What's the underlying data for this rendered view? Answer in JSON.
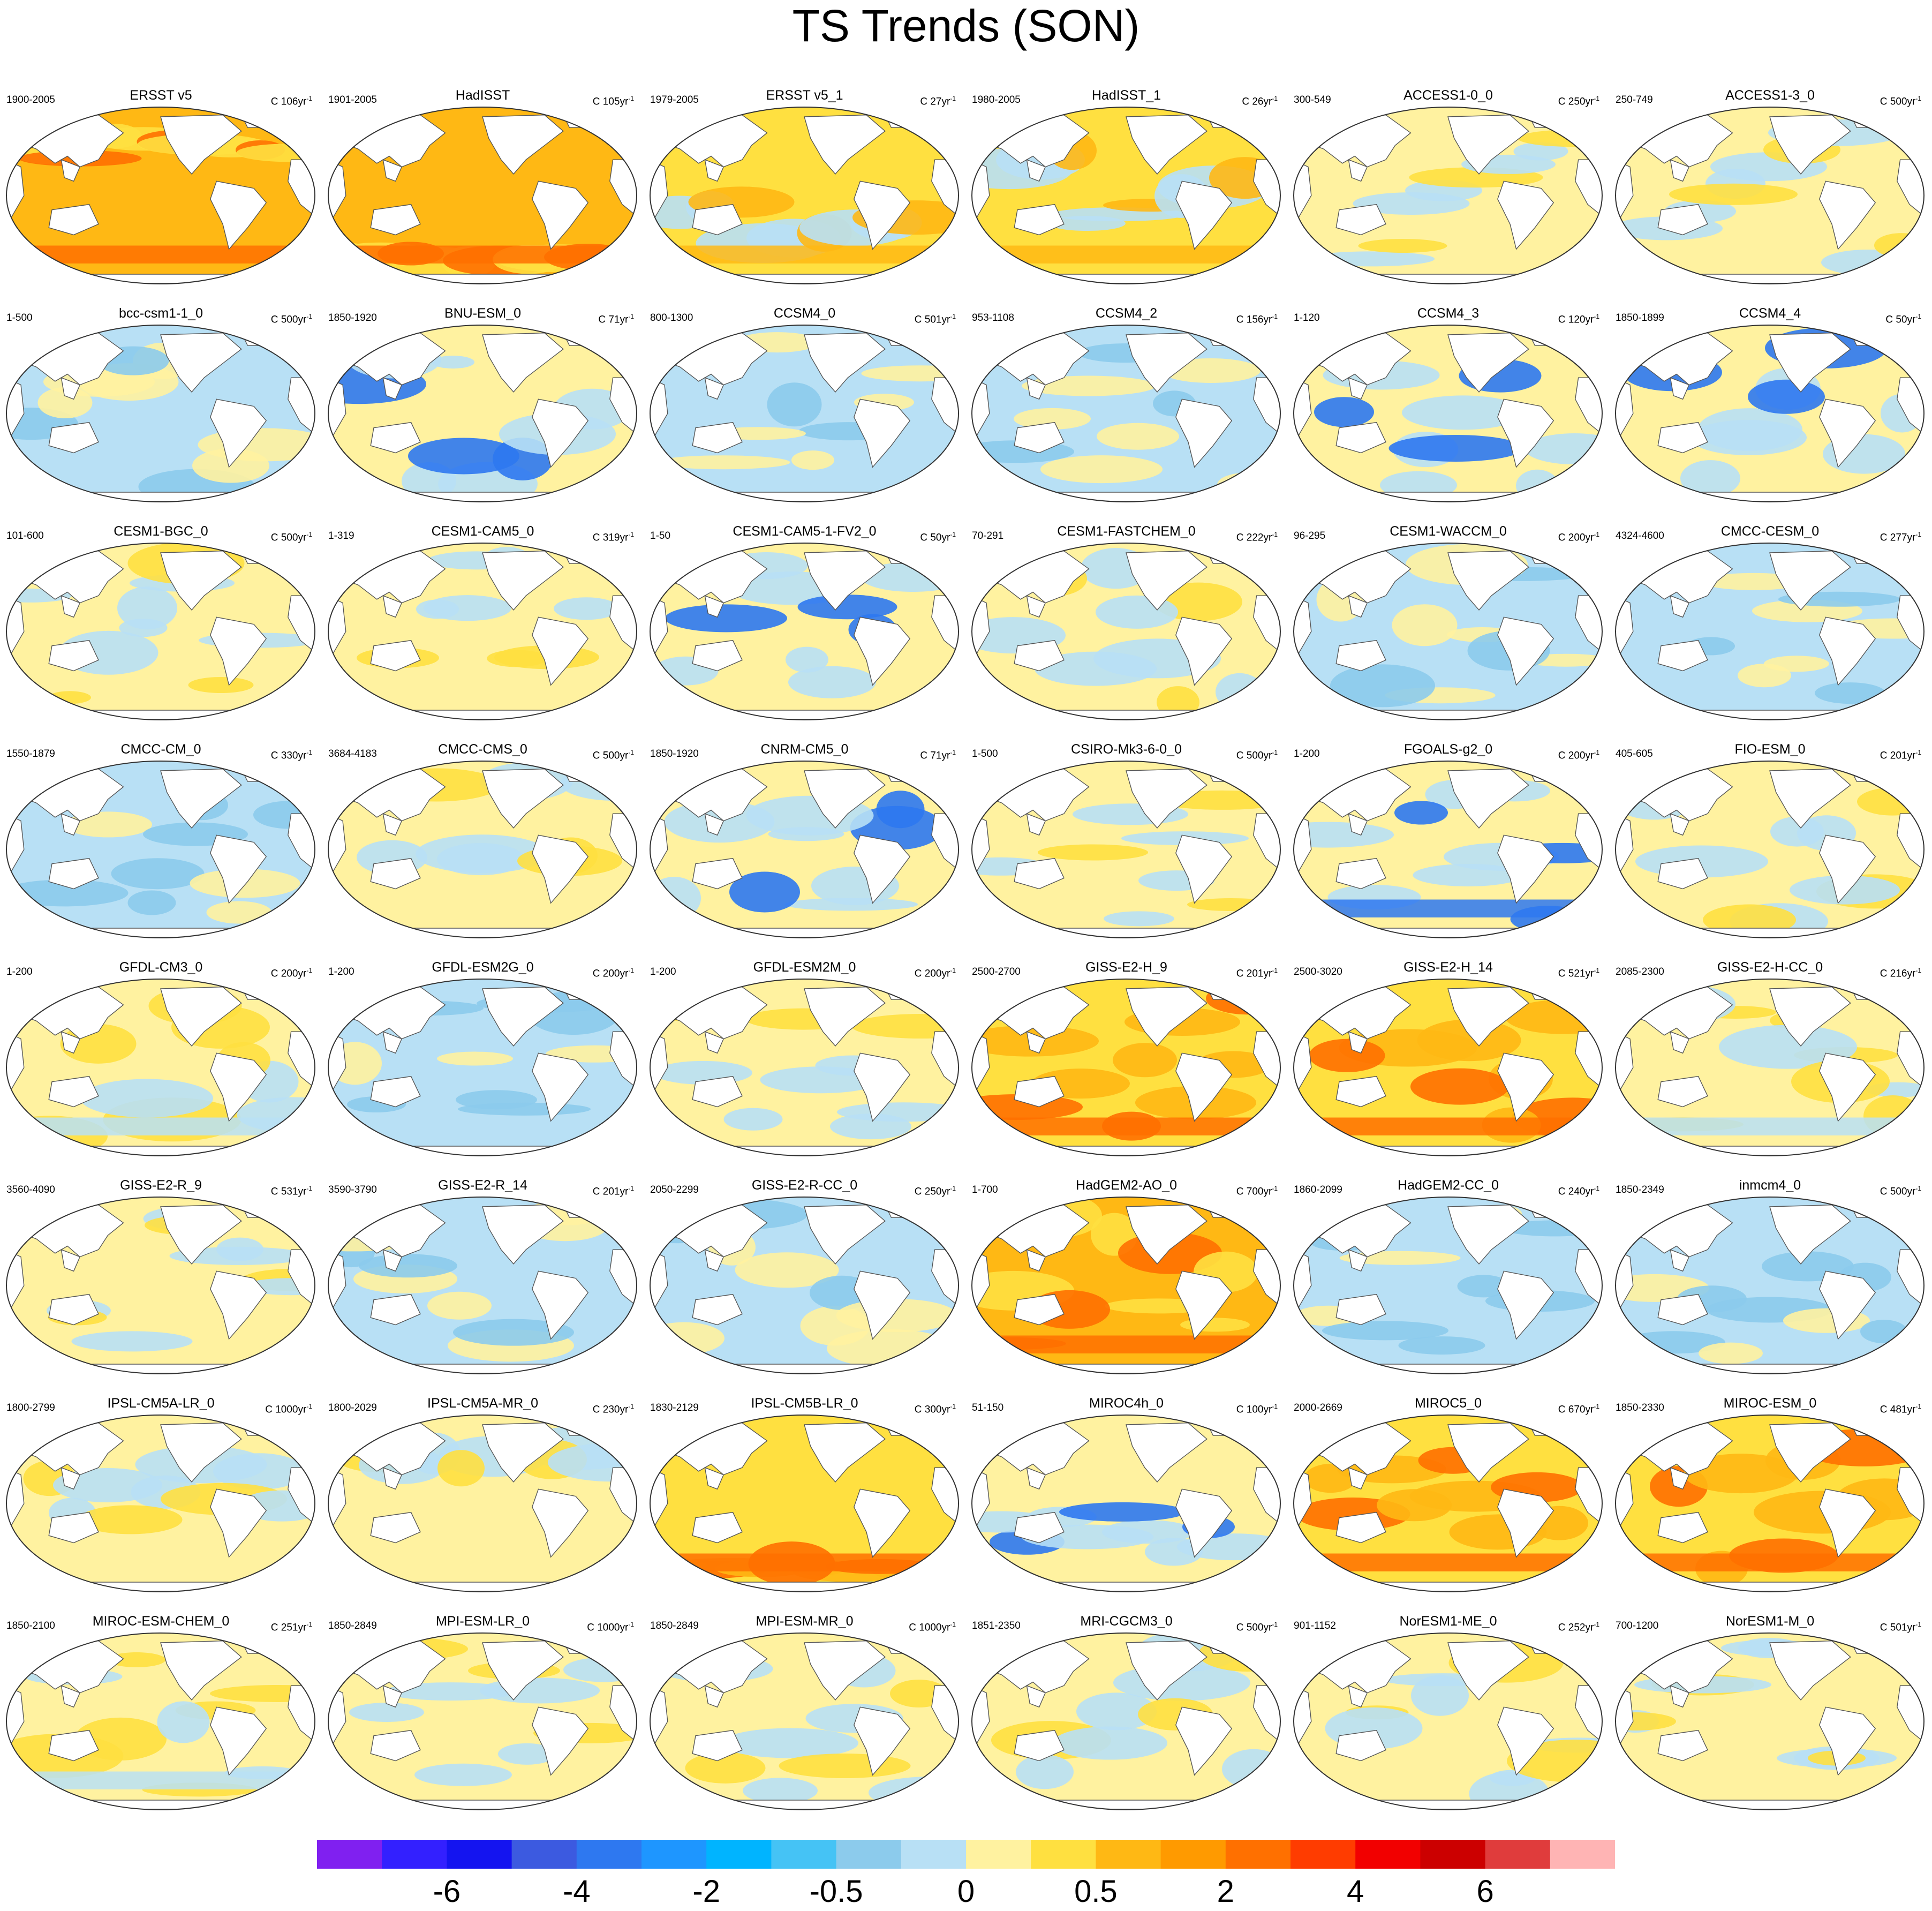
{
  "title": "TS Trends (SON)",
  "panels": [
    {
      "name": "ERSST v5",
      "years": "1900-2005",
      "scale": "C 106yr",
      "pattern": "warm"
    },
    {
      "name": "HadISST",
      "years": "1901-2005",
      "scale": "C 105yr",
      "pattern": "warm"
    },
    {
      "name": "ERSST v5_1",
      "years": "1979-2005",
      "scale": "C 27yr",
      "pattern": "mixed-warm"
    },
    {
      "name": "HadISST_1",
      "years": "1980-2005",
      "scale": "C 26yr",
      "pattern": "mixed-warm"
    },
    {
      "name": "ACCESS1-0_0",
      "years": "300-549",
      "scale": "C 250yr",
      "pattern": "neutral"
    },
    {
      "name": "ACCESS1-3_0",
      "years": "250-749",
      "scale": "C 500yr",
      "pattern": "neutral"
    },
    {
      "name": "bcc-csm1-1_0",
      "years": "1-500",
      "scale": "C 500yr",
      "pattern": "neutral-cool"
    },
    {
      "name": "BNU-ESM_0",
      "years": "1850-1920",
      "scale": "C 71yr",
      "pattern": "mixed"
    },
    {
      "name": "CCSM4_0",
      "years": "800-1300",
      "scale": "C 501yr",
      "pattern": "neutral-cool"
    },
    {
      "name": "CCSM4_2",
      "years": "953-1108",
      "scale": "C 156yr",
      "pattern": "neutral-cool"
    },
    {
      "name": "CCSM4_3",
      "years": "1-120",
      "scale": "C 120yr",
      "pattern": "mixed"
    },
    {
      "name": "CCSM4_4",
      "years": "1850-1899",
      "scale": "C 50yr",
      "pattern": "mixed"
    },
    {
      "name": "CESM1-BGC_0",
      "years": "101-600",
      "scale": "C 500yr",
      "pattern": "neutral"
    },
    {
      "name": "CESM1-CAM5_0",
      "years": "1-319",
      "scale": "C 319yr",
      "pattern": "neutral"
    },
    {
      "name": "CESM1-CAM5-1-FV2_0",
      "years": "1-50",
      "scale": "C 50yr",
      "pattern": "mixed"
    },
    {
      "name": "CESM1-FASTCHEM_0",
      "years": "70-291",
      "scale": "C 222yr",
      "pattern": "neutral"
    },
    {
      "name": "CESM1-WACCM_0",
      "years": "96-295",
      "scale": "C 200yr",
      "pattern": "neutral-cool"
    },
    {
      "name": "CMCC-CESM_0",
      "years": "4324-4600",
      "scale": "C 277yr",
      "pattern": "neutral-cool"
    },
    {
      "name": "CMCC-CM_0",
      "years": "1550-1879",
      "scale": "C 330yr",
      "pattern": "cool"
    },
    {
      "name": "CMCC-CMS_0",
      "years": "3684-4183",
      "scale": "C 500yr",
      "pattern": "neutral"
    },
    {
      "name": "CNRM-CM5_0",
      "years": "1850-1920",
      "scale": "C 71yr",
      "pattern": "mixed"
    },
    {
      "name": "CSIRO-Mk3-6-0_0",
      "years": "1-500",
      "scale": "C 500yr",
      "pattern": "neutral"
    },
    {
      "name": "FGOALS-g2_0",
      "years": "1-200",
      "scale": "C 200yr",
      "pattern": "cool-south"
    },
    {
      "name": "FIO-ESM_0",
      "years": "405-605",
      "scale": "C 201yr",
      "pattern": "neutral"
    },
    {
      "name": "GFDL-CM3_0",
      "years": "1-200",
      "scale": "C 200yr",
      "pattern": "neutral-warm"
    },
    {
      "name": "GFDL-ESM2G_0",
      "years": "1-200",
      "scale": "C 200yr",
      "pattern": "cool"
    },
    {
      "name": "GFDL-ESM2M_0",
      "years": "1-200",
      "scale": "C 200yr",
      "pattern": "neutral"
    },
    {
      "name": "GISS-E2-H_9",
      "years": "2500-2700",
      "scale": "C 201yr",
      "pattern": "warm-south"
    },
    {
      "name": "GISS-E2-H_14",
      "years": "2500-3020",
      "scale": "C 521yr",
      "pattern": "warm-south"
    },
    {
      "name": "GISS-E2-H-CC_0",
      "years": "2085-2300",
      "scale": "C 216yr",
      "pattern": "neutral-warm"
    },
    {
      "name": "GISS-E2-R_9",
      "years": "3560-4090",
      "scale": "C 531yr",
      "pattern": "neutral"
    },
    {
      "name": "GISS-E2-R_14",
      "years": "3590-3790",
      "scale": "C 201yr",
      "pattern": "neutral-cool"
    },
    {
      "name": "GISS-E2-R-CC_0",
      "years": "2050-2299",
      "scale": "C 250yr",
      "pattern": "neutral-cool"
    },
    {
      "name": "HadGEM2-AO_0",
      "years": "1-700",
      "scale": "C 700yr",
      "pattern": "warm"
    },
    {
      "name": "HadGEM2-CC_0",
      "years": "1860-2099",
      "scale": "C 240yr",
      "pattern": "cool"
    },
    {
      "name": "inmcm4_0",
      "years": "1850-2349",
      "scale": "C 500yr",
      "pattern": "cool"
    },
    {
      "name": "IPSL-CM5A-LR_0",
      "years": "1800-2799",
      "scale": "C 1000yr",
      "pattern": "neutral"
    },
    {
      "name": "IPSL-CM5A-MR_0",
      "years": "1800-2029",
      "scale": "C 230yr",
      "pattern": "neutral"
    },
    {
      "name": "IPSL-CM5B-LR_0",
      "years": "1830-2129",
      "scale": "C 300yr",
      "pattern": "warm-south"
    },
    {
      "name": "MIROC4h_0",
      "years": "51-150",
      "scale": "C 100yr",
      "pattern": "mixed"
    },
    {
      "name": "MIROC5_0",
      "years": "2000-2669",
      "scale": "C 670yr",
      "pattern": "warm-south"
    },
    {
      "name": "MIROC-ESM_0",
      "years": "1850-2330",
      "scale": "C 481yr",
      "pattern": "warm-south"
    },
    {
      "name": "MIROC-ESM-CHEM_0",
      "years": "1850-2100",
      "scale": "C 251yr",
      "pattern": "neutral-warm"
    },
    {
      "name": "MPI-ESM-LR_0",
      "years": "1850-2849",
      "scale": "C 1000yr",
      "pattern": "neutral"
    },
    {
      "name": "MPI-ESM-MR_0",
      "years": "1850-2849",
      "scale": "C 1000yr",
      "pattern": "neutral"
    },
    {
      "name": "MRI-CGCM3_0",
      "years": "1851-2350",
      "scale": "C 500yr",
      "pattern": "neutral"
    },
    {
      "name": "NorESM1-ME_0",
      "years": "901-1152",
      "scale": "C 252yr",
      "pattern": "neutral"
    },
    {
      "name": "NorESM1-M_0",
      "years": "700-1200",
      "scale": "C 501yr",
      "pattern": "neutral"
    }
  ],
  "scale_unit_exponent": "-1",
  "colorbar": {
    "colors": [
      "#8020f0",
      "#3320ff",
      "#1414f0",
      "#3c5ae0",
      "#2e78f0",
      "#1e96ff",
      "#00b4ff",
      "#45c3f5",
      "#8ccbec",
      "#b8e0f5",
      "#fff2a0",
      "#ffe040",
      "#ffb814",
      "#ff9a00",
      "#ff7000",
      "#ff3c00",
      "#f20000",
      "#cc0000",
      "#e03c3c",
      "#ffb4b4"
    ],
    "labels": [
      "-6",
      "-4",
      "-2",
      "-0.5",
      "0",
      "0.5",
      "2",
      "4",
      "6"
    ],
    "label_boundaries": [
      2,
      4,
      6,
      8,
      10,
      12,
      14,
      16,
      18
    ]
  },
  "pattern_colors": {
    "ocean_warm": "#ffb814",
    "ocean_neutral": "#fff2a0",
    "ocean_cool": "#b8e0f5",
    "accent_warm": "#ffe040",
    "accent_cool": "#8ccbec",
    "strong_warm": "#ff7000",
    "strong_cool": "#2e78f0",
    "land": "#ffffff"
  }
}
